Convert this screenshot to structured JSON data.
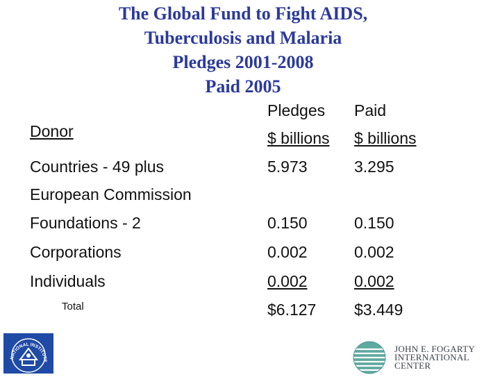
{
  "title": {
    "lines": [
      "The Global Fund to Fight AIDS,",
      "Tuberculosis and Malaria",
      "Pledges 2001-2008",
      "Paid 2005"
    ]
  },
  "headers": {
    "donor": "Donor",
    "pledges": "Pledges",
    "pledges_unit": "$ billions",
    "paid": "Paid",
    "paid_unit": "$ billions"
  },
  "rows": [
    {
      "donor": "Countries -  49 plus",
      "pledges": "5.973",
      "paid": "3.295"
    },
    {
      "donor": "European Commission",
      "pledges": "",
      "paid": ""
    },
    {
      "donor": "Foundations - 2",
      "pledges": "0.150",
      "paid": "0.150"
    },
    {
      "donor": "Corporations",
      "pledges": "0.002",
      "paid": "0.002"
    },
    {
      "donor": "Individuals",
      "pledges": "0.002",
      "paid": "0.002"
    }
  ],
  "total": {
    "label": "Total",
    "pledges": "$6.127",
    "paid": "$3.449"
  },
  "logos": {
    "nih": {
      "text": "NATIONAL INSTITUTES OF HEALTH",
      "color": "#1f4aa6"
    },
    "fogarty": {
      "lines": [
        "JOHN E. FOGARTY",
        "INTERNATIONAL",
        "CENTER"
      ],
      "icon": "globe-icon"
    }
  },
  "colors": {
    "title": "#2b3a9b",
    "text": "#111111"
  }
}
